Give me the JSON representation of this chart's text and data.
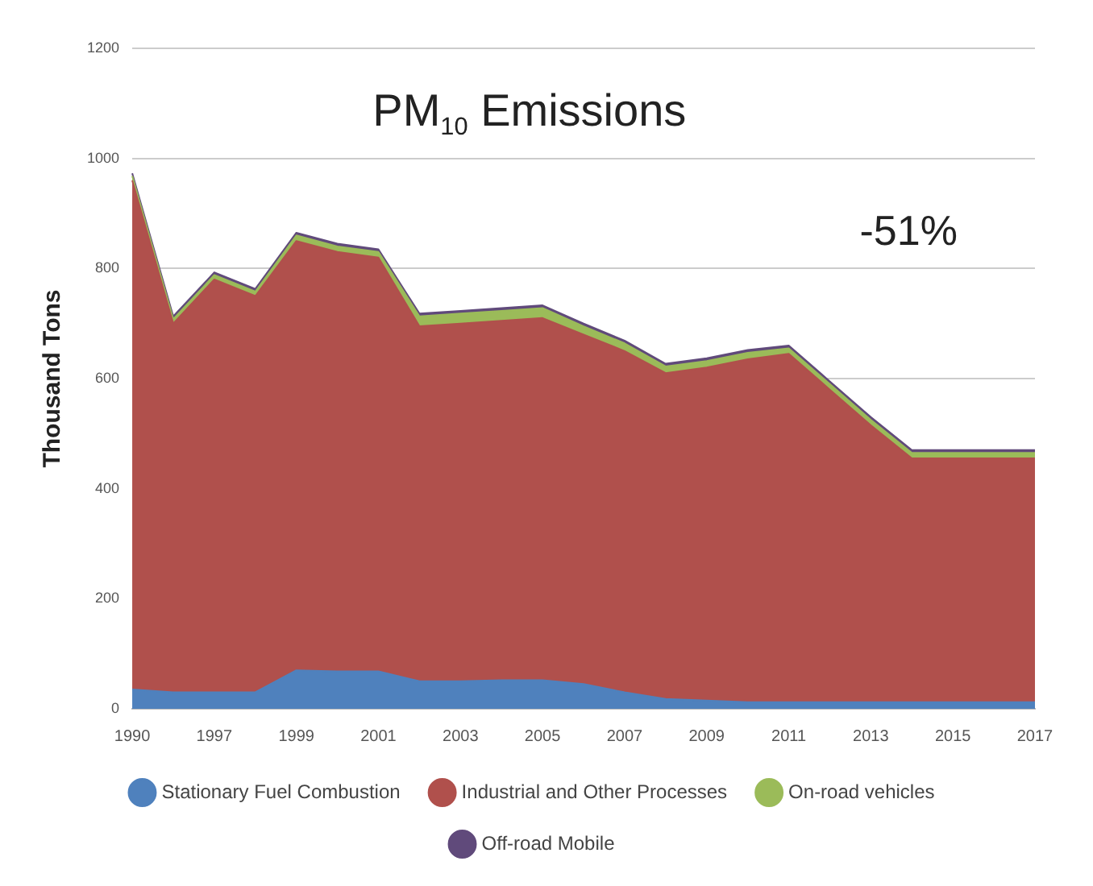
{
  "chart_data": {
    "type": "area",
    "title": "PM$_{10}$ Emissions",
    "ylabel": "Thousand Tons",
    "stacked": true,
    "categories": [
      "1990",
      null,
      "1997",
      null,
      "1999",
      null,
      "2001",
      null,
      "2003",
      null,
      "2005",
      null,
      "2007",
      null,
      "2009",
      null,
      "2011",
      null,
      "2013",
      null,
      "2015",
      null,
      "2017"
    ],
    "series": [
      {
        "name": "Stationary Fuel Combustion",
        "color": "#4f81bd",
        "values": [
          35,
          30,
          30,
          30,
          70,
          68,
          68,
          50,
          50,
          52,
          52,
          45,
          30,
          18,
          15,
          12,
          12,
          12,
          12,
          12,
          12,
          12,
          12
        ]
      },
      {
        "name": "Industrial and Other Processes",
        "color": "#b0504c",
        "values": [
          925,
          670,
          750,
          720,
          780,
          762,
          752,
          645,
          650,
          653,
          658,
          635,
          620,
          592,
          605,
          623,
          633,
          568,
          503,
          443,
          443,
          443,
          443
        ]
      },
      {
        "name": "On-road vehicles",
        "color": "#9bbb59",
        "values": [
          8,
          8,
          8,
          8,
          10,
          10,
          10,
          18,
          18,
          18,
          18,
          15,
          14,
          12,
          12,
          12,
          10,
          10,
          10,
          10,
          10,
          10,
          10
        ]
      },
      {
        "name": "Off-road Mobile",
        "color": "#604a7b",
        "values": [
          5,
          5,
          5,
          5,
          5,
          5,
          5,
          5,
          5,
          5,
          5,
          5,
          5,
          5,
          5,
          5,
          5,
          5,
          5,
          5,
          5,
          5,
          5
        ]
      }
    ],
    "ylim": [
      0,
      1200
    ],
    "yticks": [
      0,
      200,
      400,
      600,
      800,
      1000,
      1200
    ],
    "grid": "y",
    "legend": "bottom",
    "annotations": [
      "-51%"
    ]
  }
}
